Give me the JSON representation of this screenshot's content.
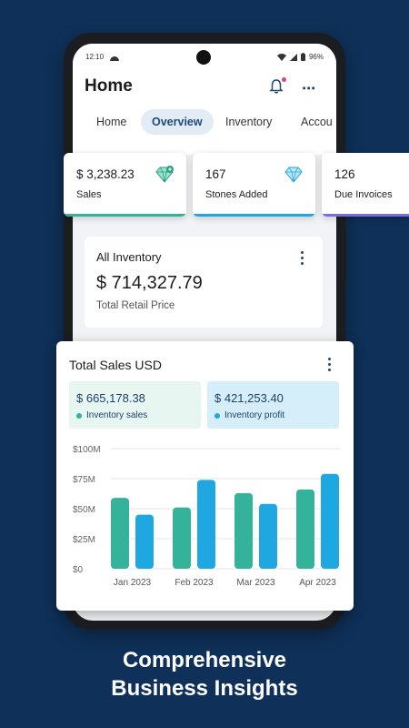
{
  "status": {
    "time": "12:10",
    "battery": "96%"
  },
  "header": {
    "title": "Home"
  },
  "tabs": [
    {
      "label": "Home"
    },
    {
      "label": "Overview"
    },
    {
      "label": "Inventory"
    },
    {
      "label": "Accou"
    }
  ],
  "stats": [
    {
      "value": "$ 3,238.23",
      "label": "Sales",
      "icon": "diamond-plus-icon",
      "color": "#34b39a"
    },
    {
      "value": "167",
      "label": "Stones Added",
      "icon": "diamond-icon",
      "color": "#1ea7e1"
    },
    {
      "value": "126",
      "label": "Due Invoices",
      "icon": "",
      "color": "#7a6ce0"
    }
  ],
  "inventory": {
    "title": "All Inventory",
    "value": "$ 714,327.79",
    "subtitle": "Total Retail Price"
  },
  "sales": {
    "title": "Total Sales USD",
    "summary": [
      {
        "value": "$ 665,178.38",
        "label": "Inventory sales",
        "color": "#34b39a"
      },
      {
        "value": "$ 421,253.40",
        "label": "Inventory profit",
        "color": "#1ea7e1"
      }
    ]
  },
  "chart_data": {
    "type": "bar",
    "categories": [
      "Jan 2023",
      "Feb 2023",
      "Mar 2023",
      "Apr 2023"
    ],
    "series": [
      {
        "name": "Inventory sales",
        "values": [
          59,
          51,
          63,
          66
        ],
        "color": "#34b39a"
      },
      {
        "name": "Inventory profit",
        "values": [
          45,
          74,
          54,
          79
        ],
        "color": "#1ea7e1"
      }
    ],
    "yticks": [
      "$0",
      "$25M",
      "$50M",
      "$75M",
      "$100M"
    ],
    "ylim": [
      0,
      100
    ],
    "grid": true,
    "legend": "none"
  },
  "caption": {
    "line1": "Comprehensive",
    "line2": "Business Insights"
  }
}
